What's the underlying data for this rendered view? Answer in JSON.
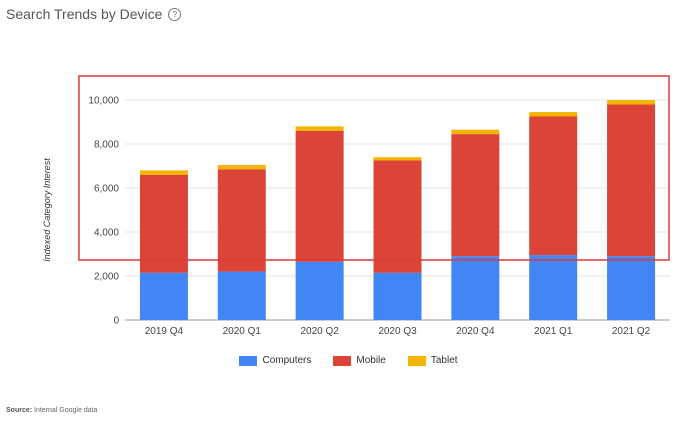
{
  "header": {
    "title": "Search Trends by Device",
    "help_glyph": "?"
  },
  "source": {
    "label": "Source:",
    "text": "Internal Google data"
  },
  "highlight_color": "#d93b3b",
  "chart_data": {
    "type": "bar",
    "stacked": true,
    "title": "Search Trends by Device",
    "xlabel": "",
    "ylabel": "Indexed Category Interest",
    "ylim": [
      0,
      10000
    ],
    "yticks": [
      0,
      2000,
      4000,
      6000,
      8000,
      10000
    ],
    "ytick_labels": [
      "0",
      "2,000",
      "4,000",
      "6,000",
      "8,000",
      "10,000"
    ],
    "categories": [
      "2019 Q4",
      "2020 Q1",
      "2020 Q2",
      "2020 Q3",
      "2020 Q4",
      "2021 Q1",
      "2021 Q2"
    ],
    "series": [
      {
        "name": "Computers",
        "color": "#4285f4",
        "values": [
          2150,
          2200,
          2650,
          2150,
          2900,
          2950,
          2900
        ]
      },
      {
        "name": "Mobile",
        "color": "#db4437",
        "values": [
          4450,
          4650,
          5950,
          5100,
          5550,
          6300,
          6900
        ]
      },
      {
        "name": "Tablet",
        "color": "#f4b400",
        "values": [
          200,
          200,
          200,
          150,
          200,
          200,
          200
        ]
      }
    ],
    "legend_position": "bottom"
  }
}
